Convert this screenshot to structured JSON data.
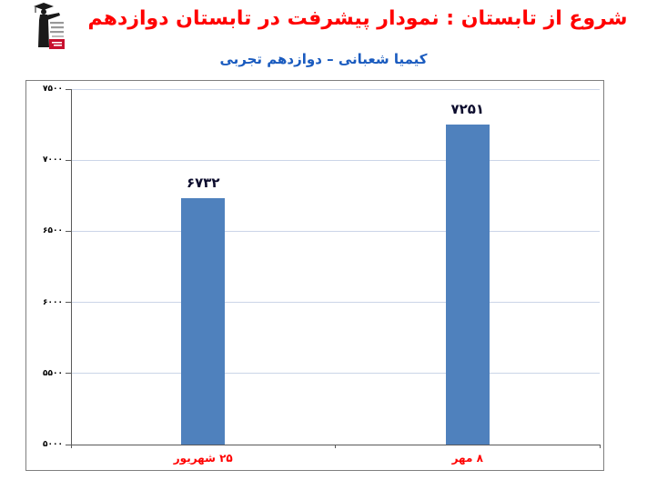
{
  "header": {
    "title": "شروع از تابستان : نمودار پیشرفت در تابستان دوازدهم",
    "subtitle": "کیمیا شعبانی – دوازدهم تجربی"
  },
  "logo": {
    "name": "graduate-mascot-logo",
    "badge_color": "#C8102E",
    "figure_color": "#1a1a1a",
    "text_line_color": "#999999"
  },
  "chart_data": {
    "type": "bar",
    "title": "",
    "categories": [
      "۲۵ شهریور",
      "۸ مهر"
    ],
    "values": [
      6732,
      7251
    ],
    "value_labels": [
      "۶۷۳۲",
      "۷۲۵۱"
    ],
    "ylim": [
      5000,
      7500
    ],
    "y_tick_values": [
      5000,
      5500,
      6000,
      6500,
      7000,
      7500
    ],
    "y_tick_labels": [
      "۵۰۰۰",
      "۵۵۰۰",
      "۶۰۰۰",
      "۶۵۰۰",
      "۷۰۰۰",
      "۷۵۰۰"
    ],
    "grid": true,
    "legend": false,
    "bar_color": "#4F81BD",
    "gridline_color": "#CBD5E8",
    "axis_color": "#595959",
    "value_label_color": "#0D0D2E",
    "category_label_color": "#FF0000",
    "tick_label_color": "#000000"
  },
  "colors": {
    "title": "#FF0000",
    "subtitle": "#1A5BBF",
    "chart_border": "#7F7F7F",
    "background": "#FFFFFF"
  }
}
